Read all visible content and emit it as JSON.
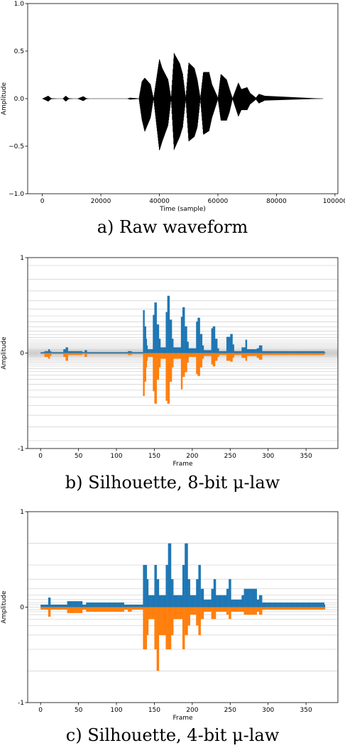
{
  "captions": {
    "a": "a) Raw waveform",
    "b": "b) Silhouette, 8-bit μ-law",
    "c": "c) Silhouette, 4-bit μ-law"
  },
  "colors": {
    "waveform": "#000000",
    "positive": "#1f77b4",
    "negative": "#ff7f0e",
    "grid": "#cfcfcf"
  },
  "chart_data": [
    {
      "id": "a",
      "type": "line",
      "title": "",
      "xlabel": "Time (sample)",
      "ylabel": "Amplitude",
      "xlim": [
        -5000,
        101000
      ],
      "ylim": [
        -1.0,
        1.0
      ],
      "xticks": [
        0,
        20000,
        40000,
        60000,
        80000,
        100000
      ],
      "yticks": [
        -1.0,
        -0.5,
        0.0,
        0.5,
        1.0
      ],
      "ytick_labels": [
        "−1.0",
        "−0.5",
        "0.0",
        "0.5",
        "1.0"
      ],
      "grid": false,
      "series": [
        {
          "x": [
            0,
            2000,
            3000,
            5000,
            7000,
            8000,
            9000,
            10500,
            12000,
            14000,
            15000,
            16000,
            29000,
            30000,
            32000,
            33000,
            34000,
            35000,
            37000,
            38000,
            40000,
            41000,
            43000,
            44000,
            45000,
            47000,
            48000,
            49000,
            50000,
            52000,
            53000,
            54000,
            55000,
            57000,
            58000,
            60000,
            61000,
            63000,
            64000,
            65000,
            67000,
            68000,
            70000,
            71000,
            73000,
            74000,
            76000,
            96000
          ],
          "envelope_top": [
            0,
            0.03,
            0.005,
            0,
            0,
            0.03,
            0.005,
            0,
            0,
            0.025,
            0.005,
            0,
            0,
            0.01,
            0.005,
            0.003,
            0.18,
            0.22,
            0.15,
            0.005,
            0.42,
            0.32,
            0.2,
            0.01,
            0.48,
            0.37,
            0.26,
            0.01,
            0.38,
            0.32,
            0.2,
            0.01,
            0.28,
            0.28,
            0.15,
            0.01,
            0.26,
            0.2,
            0.1,
            0.005,
            0.17,
            0.1,
            0.12,
            0.06,
            0.01,
            0.05,
            0.03,
            0
          ],
          "envelope_bottom": [
            0,
            -0.03,
            -0.005,
            0,
            0,
            -0.03,
            -0.005,
            0,
            0,
            -0.025,
            -0.005,
            0,
            0,
            -0.01,
            -0.005,
            -0.003,
            -0.22,
            -0.35,
            -0.2,
            -0.005,
            -0.55,
            -0.45,
            -0.28,
            -0.01,
            -0.54,
            -0.4,
            -0.3,
            -0.01,
            -0.45,
            -0.4,
            -0.3,
            -0.01,
            -0.38,
            -0.34,
            -0.2,
            -0.01,
            -0.23,
            -0.23,
            -0.14,
            -0.005,
            -0.19,
            -0.12,
            -0.12,
            -0.06,
            -0.01,
            -0.05,
            -0.02,
            0
          ]
        }
      ]
    },
    {
      "id": "b",
      "type": "bar",
      "title": "",
      "xlabel": "Frame",
      "ylabel": "Amplitude",
      "xlim": [
        -17,
        392
      ],
      "ylim": [
        -1,
        1
      ],
      "xticks": [
        0,
        50,
        100,
        150,
        200,
        250,
        300,
        350
      ],
      "yticks": [
        -1,
        0,
        1
      ],
      "grid": true,
      "grid_levels": 65,
      "frames": 375,
      "series": [
        {
          "name": "",
          "x": [
            0,
            5,
            10,
            12,
            14,
            30,
            33,
            36,
            55,
            58,
            61,
            110,
            115,
            120,
            135,
            137,
            139,
            140,
            141,
            148,
            150,
            153,
            156,
            158,
            165,
            167,
            170,
            173,
            175,
            185,
            187,
            190,
            193,
            195,
            205,
            207,
            210,
            213,
            215,
            225,
            227,
            230,
            233,
            235,
            245,
            250,
            253,
            255,
            265,
            270,
            272,
            285,
            288,
            292,
            374
          ],
          "y": [
            0.01,
            0.02,
            0.04,
            0.02,
            0.01,
            0.04,
            0.06,
            0.02,
            0.01,
            0.03,
            0.01,
            0.01,
            0.02,
            0.01,
            0.45,
            0.28,
            0.15,
            0.08,
            0.04,
            0.4,
            0.53,
            0.3,
            0.15,
            0.06,
            0.43,
            0.6,
            0.35,
            0.15,
            0.06,
            0.38,
            0.48,
            0.28,
            0.12,
            0.05,
            0.33,
            0.37,
            0.2,
            0.08,
            0.03,
            0.26,
            0.28,
            0.15,
            0.05,
            0.02,
            0.17,
            0.2,
            0.09,
            0.02,
            0.06,
            0.14,
            0.04,
            0.05,
            0.08,
            0.02,
            0.01
          ]
        },
        {
          "name": "",
          "x": [
            0,
            5,
            10,
            12,
            14,
            30,
            33,
            36,
            55,
            58,
            61,
            110,
            115,
            120,
            135,
            137,
            139,
            140,
            141,
            148,
            150,
            153,
            156,
            158,
            165,
            167,
            170,
            173,
            175,
            185,
            187,
            190,
            193,
            195,
            205,
            207,
            210,
            213,
            215,
            225,
            227,
            230,
            233,
            235,
            245,
            250,
            253,
            255,
            265,
            270,
            272,
            285,
            288,
            292,
            374
          ],
          "y": [
            -0.01,
            -0.04,
            -0.06,
            -0.03,
            -0.01,
            -0.04,
            -0.08,
            -0.02,
            -0.01,
            -0.04,
            -0.01,
            -0.01,
            -0.02,
            -0.01,
            -0.45,
            -0.3,
            -0.15,
            -0.08,
            -0.04,
            -0.4,
            -0.53,
            -0.28,
            -0.15,
            -0.06,
            -0.5,
            -0.53,
            -0.3,
            -0.15,
            -0.06,
            -0.38,
            -0.25,
            -0.2,
            -0.1,
            -0.04,
            -0.22,
            -0.24,
            -0.15,
            -0.06,
            -0.03,
            -0.12,
            -0.14,
            -0.08,
            -0.04,
            -0.02,
            -0.08,
            -0.09,
            -0.05,
            -0.02,
            -0.05,
            -0.08,
            -0.03,
            -0.05,
            -0.07,
            -0.02,
            -0.01
          ]
        }
      ]
    },
    {
      "id": "c",
      "type": "bar",
      "title": "",
      "xlabel": "Frame",
      "ylabel": "Amplitude",
      "xlim": [
        -17,
        392
      ],
      "ylim": [
        -1,
        1
      ],
      "xticks": [
        0,
        50,
        100,
        150,
        200,
        250,
        300,
        350
      ],
      "yticks": [
        -1,
        0,
        1
      ],
      "grid": true,
      "grid_levels": [
        0.668,
        0.442,
        0.293,
        0.192,
        0.125,
        0.079,
        0.048,
        0.026,
        0,
        -0.026,
        -0.048,
        -0.079,
        -0.125,
        -0.192,
        -0.293,
        -0.442,
        -0.668
      ],
      "frames": 375,
      "series": [
        {
          "name": "",
          "x": [
            0,
            10,
            13,
            30,
            35,
            55,
            60,
            110,
            135,
            140,
            142,
            150,
            153,
            156,
            165,
            168,
            172,
            175,
            187,
            190,
            194,
            197,
            205,
            208,
            211,
            215,
            225,
            228,
            231,
            245,
            248,
            251,
            265,
            268,
            285,
            288,
            292,
            374
          ],
          "y": [
            0.026,
            0.1,
            0.026,
            0.026,
            0.062,
            0.026,
            0.048,
            0.026,
            0.442,
            0.293,
            0.125,
            0.442,
            0.293,
            0.125,
            0.442,
            0.668,
            0.293,
            0.125,
            0.442,
            0.668,
            0.293,
            0.125,
            0.293,
            0.442,
            0.192,
            0.079,
            0.192,
            0.293,
            0.125,
            0.192,
            0.293,
            0.079,
            0.125,
            0.192,
            0.079,
            0.125,
            0.048,
            0.026
          ]
        },
        {
          "name": "",
          "x": [
            0,
            10,
            13,
            30,
            35,
            55,
            60,
            110,
            115,
            120,
            135,
            140,
            142,
            150,
            153,
            156,
            165,
            168,
            172,
            175,
            187,
            190,
            194,
            197,
            205,
            208,
            211,
            215,
            225,
            228,
            231,
            245,
            248,
            251,
            265,
            268,
            285,
            288,
            292,
            374
          ],
          "y": [
            -0.026,
            -0.1,
            -0.026,
            -0.026,
            -0.062,
            -0.026,
            -0.048,
            -0.026,
            -0.048,
            -0.026,
            -0.442,
            -0.293,
            -0.125,
            -0.442,
            -0.668,
            -0.293,
            -0.442,
            -0.442,
            -0.293,
            -0.125,
            -0.442,
            -0.293,
            -0.192,
            -0.079,
            -0.192,
            -0.293,
            -0.125,
            -0.048,
            -0.125,
            -0.125,
            -0.048,
            -0.079,
            -0.125,
            -0.048,
            -0.048,
            -0.079,
            -0.048,
            -0.079,
            -0.026,
            -0.026
          ]
        }
      ]
    }
  ]
}
